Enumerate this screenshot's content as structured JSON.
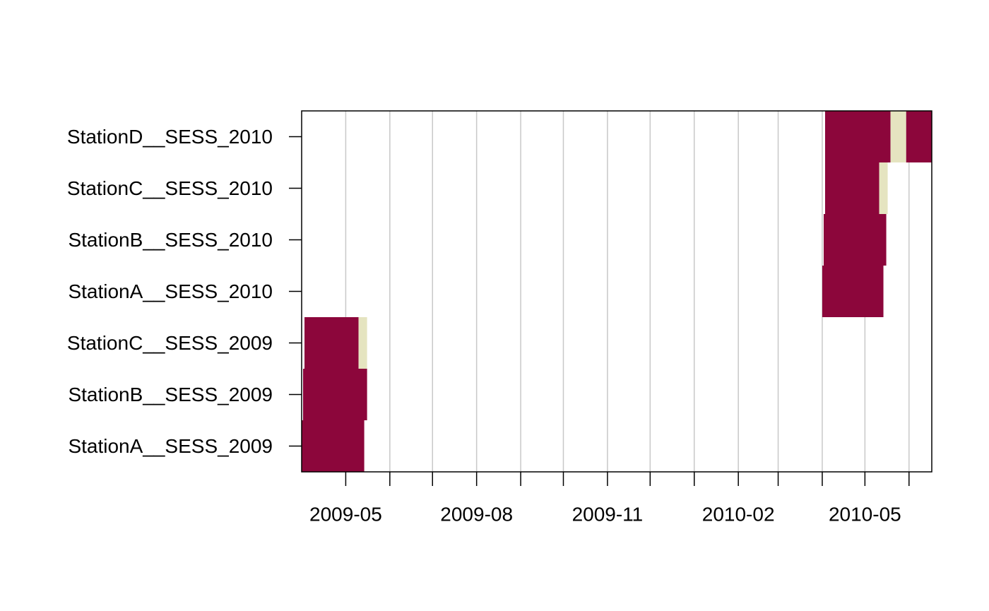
{
  "chart_data": {
    "type": "timeline",
    "title": "",
    "xlabel": "",
    "ylabel": "",
    "grid": {
      "vertical": true,
      "color": "#c8c8c8"
    },
    "colors": {
      "active": "#8c063b",
      "inactive": "#e5e4c0",
      "axis": "#000000"
    },
    "x_range": [
      "2009-03-31",
      "2010-06-17"
    ],
    "x_ticks": [
      "2009-05-01",
      "2009-06-01",
      "2009-07-01",
      "2009-08-01",
      "2009-09-01",
      "2009-10-01",
      "2009-11-01",
      "2009-12-01",
      "2010-01-01",
      "2010-02-01",
      "2010-03-01",
      "2010-04-01",
      "2010-05-01",
      "2010-06-01"
    ],
    "x_tick_labels": [
      {
        "date": "2009-05-01",
        "label": "2009-05"
      },
      {
        "date": "2009-08-01",
        "label": "2009-08"
      },
      {
        "date": "2009-11-01",
        "label": "2009-11"
      },
      {
        "date": "2010-02-01",
        "label": "2010-02"
      },
      {
        "date": "2010-05-01",
        "label": "2010-05"
      }
    ],
    "rows": [
      {
        "label": "StationA__SESS_2009",
        "segments": [
          {
            "start": "2009-03-31",
            "end": "2009-05-14",
            "status": "active"
          }
        ]
      },
      {
        "label": "StationB__SESS_2009",
        "segments": [
          {
            "start": "2009-04-01",
            "end": "2009-05-16",
            "status": "active"
          }
        ]
      },
      {
        "label": "StationC__SESS_2009",
        "segments": [
          {
            "start": "2009-04-02",
            "end": "2009-05-10",
            "status": "active"
          },
          {
            "start": "2009-05-10",
            "end": "2009-05-16",
            "status": "inactive"
          }
        ]
      },
      {
        "label": "StationA__SESS_2010",
        "segments": [
          {
            "start": "2010-04-01",
            "end": "2010-05-14",
            "status": "active"
          }
        ]
      },
      {
        "label": "StationB__SESS_2010",
        "segments": [
          {
            "start": "2010-04-02",
            "end": "2010-05-16",
            "status": "active"
          }
        ]
      },
      {
        "label": "StationC__SESS_2010",
        "segments": [
          {
            "start": "2010-04-03",
            "end": "2010-05-11",
            "status": "active"
          },
          {
            "start": "2010-05-11",
            "end": "2010-05-17",
            "status": "inactive"
          }
        ]
      },
      {
        "label": "StationD__SESS_2010",
        "segments": [
          {
            "start": "2010-04-03",
            "end": "2010-05-19",
            "status": "active"
          },
          {
            "start": "2010-05-19",
            "end": "2010-05-30",
            "status": "inactive"
          },
          {
            "start": "2010-05-30",
            "end": "2010-06-17",
            "status": "active"
          }
        ]
      }
    ]
  }
}
